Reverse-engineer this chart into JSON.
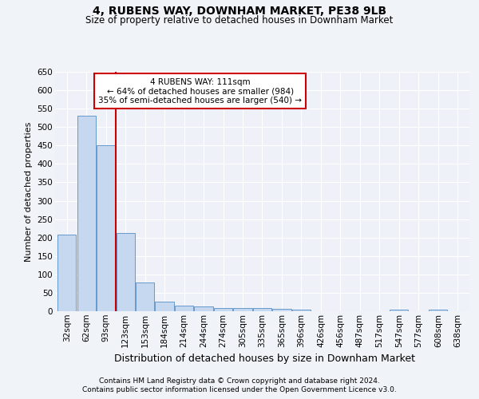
{
  "title": "4, RUBENS WAY, DOWNHAM MARKET, PE38 9LB",
  "subtitle": "Size of property relative to detached houses in Downham Market",
  "xlabel": "Distribution of detached houses by size in Downham Market",
  "ylabel": "Number of detached properties",
  "bin_labels": [
    "32sqm",
    "62sqm",
    "93sqm",
    "123sqm",
    "153sqm",
    "184sqm",
    "214sqm",
    "244sqm",
    "274sqm",
    "305sqm",
    "335sqm",
    "365sqm",
    "396sqm",
    "426sqm",
    "456sqm",
    "487sqm",
    "517sqm",
    "547sqm",
    "577sqm",
    "608sqm",
    "638sqm"
  ],
  "bar_values": [
    207,
    530,
    450,
    212,
    78,
    27,
    15,
    12,
    8,
    8,
    8,
    7,
    5,
    0,
    0,
    0,
    0,
    5,
    0,
    5,
    0
  ],
  "bar_color": "#c5d8ef",
  "bar_edge_color": "#6699cc",
  "bar_edge_width": 0.7,
  "ylim": [
    0,
    650
  ],
  "yticks": [
    0,
    50,
    100,
    150,
    200,
    250,
    300,
    350,
    400,
    450,
    500,
    550,
    600,
    650
  ],
  "vline_x": 2.52,
  "vline_color": "#cc0000",
  "annotation_line1": "4 RUBENS WAY: 111sqm",
  "annotation_line2": "← 64% of detached houses are smaller (984)",
  "annotation_line3": "35% of semi-detached houses are larger (540) →",
  "annotation_box_color": "#ffffff",
  "annotation_box_edge": "#cc0000",
  "footer1": "Contains HM Land Registry data © Crown copyright and database right 2024.",
  "footer2": "Contains public sector information licensed under the Open Government Licence v3.0.",
  "background_color": "#f0f4f8",
  "plot_bg_color": "#eef2f8",
  "grid_color": "#ffffff",
  "title_fontsize": 10,
  "subtitle_fontsize": 8.5,
  "ylabel_fontsize": 8,
  "xlabel_fontsize": 9,
  "tick_fontsize": 7.5,
  "footer_fontsize": 6.5,
  "annotation_fontsize": 7.5
}
